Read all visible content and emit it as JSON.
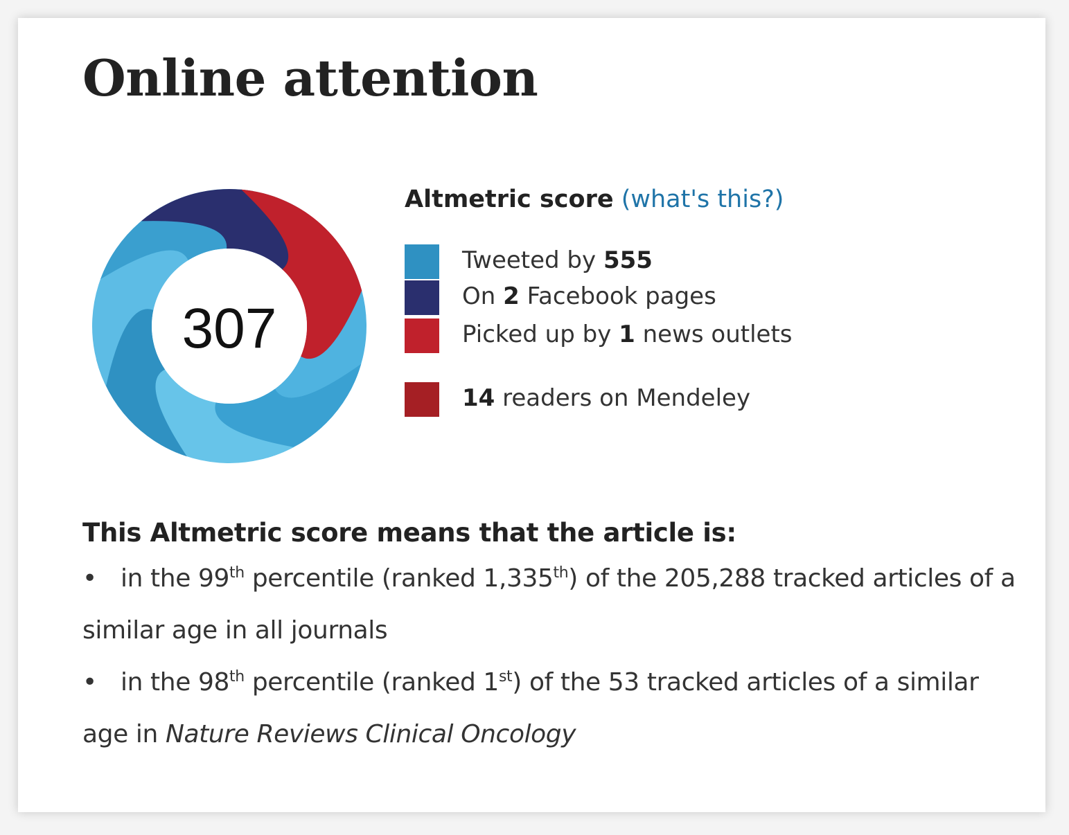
{
  "title": "Online attention",
  "score": "307",
  "score_heading": {
    "label": "Altmetric score",
    "link": "(what's this?)"
  },
  "legend": [
    {
      "prefix": "Tweeted by ",
      "value": "555",
      "suffix": "",
      "color": "#2f91c2"
    },
    {
      "prefix": "On ",
      "value": "2",
      "suffix": " Facebook pages",
      "color": "#2a2f6e"
    },
    {
      "prefix": "Picked up by ",
      "value": "1",
      "suffix": " news outlets",
      "color": "#c0212c"
    },
    {
      "prefix": "",
      "value": "14",
      "suffix": " readers on Mendeley",
      "color": "#a51f24"
    }
  ],
  "meaning": {
    "heading": "This Altmetric score means that the article is:",
    "bullets": [
      {
        "p1": "in the 99",
        "s1": "th",
        "p2": " percentile (ranked 1,335",
        "s2": "th",
        "p3": ") of the 205,288 tracked articles of a similar age in all journals",
        "journal": ""
      },
      {
        "p1": "in the 98",
        "s1": "th",
        "p2": " percentile (ranked 1",
        "s2": "st",
        "p3": ") of the 53 tracked articles of a similar age in ",
        "journal": "Nature Reviews Clinical Oncology"
      }
    ]
  },
  "colors": {
    "twitter": "#2f91c2",
    "facebook": "#2a2f6e",
    "news": "#c0212c",
    "mendeley": "#a51f24",
    "link": "#1f74a8"
  }
}
